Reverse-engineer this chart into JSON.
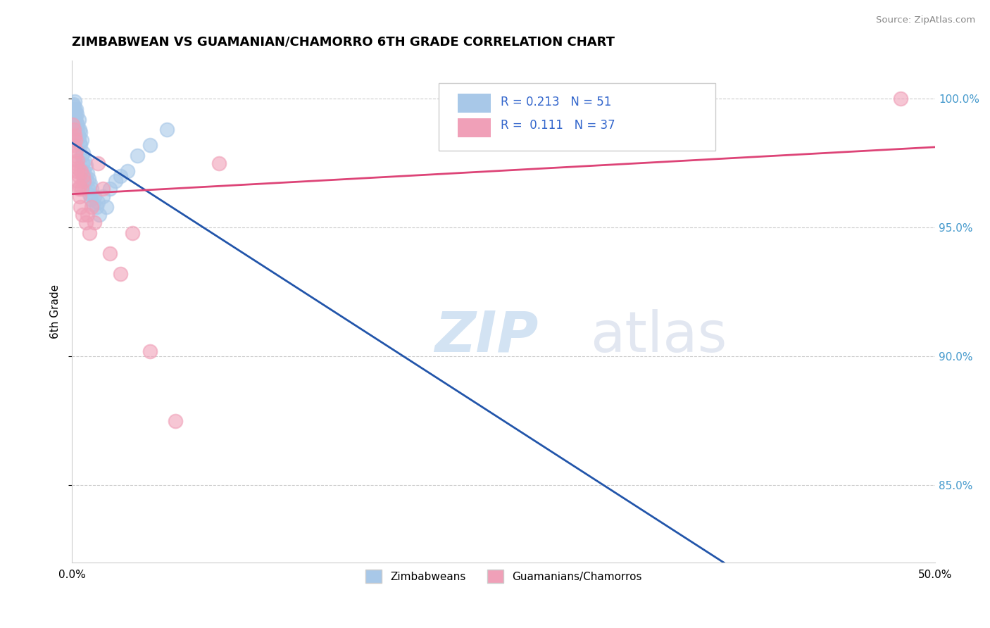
{
  "title": "ZIMBABWEAN VS GUAMANIAN/CHAMORRO 6TH GRADE CORRELATION CHART",
  "source": "Source: ZipAtlas.com",
  "ylabel_label": "6th Grade",
  "xlim": [
    0.0,
    50.0
  ],
  "ylim": [
    82.0,
    101.5
  ],
  "ytick_vals": [
    85.0,
    90.0,
    95.0,
    100.0
  ],
  "xtick_vals": [
    0.0,
    50.0
  ],
  "blue_color": "#A8C8E8",
  "pink_color": "#F0A0B8",
  "blue_line_color": "#2255AA",
  "pink_line_color": "#DD4477",
  "legend_label1": "Zimbabweans",
  "legend_label2": "Guamanians/Chamorros",
  "zimbabwean_x": [
    0.05,
    0.08,
    0.1,
    0.12,
    0.13,
    0.15,
    0.15,
    0.18,
    0.2,
    0.22,
    0.25,
    0.28,
    0.3,
    0.32,
    0.35,
    0.38,
    0.4,
    0.42,
    0.45,
    0.48,
    0.5,
    0.55,
    0.58,
    0.6,
    0.65,
    0.7,
    0.72,
    0.78,
    0.8,
    0.85,
    0.88,
    0.92,
    0.95,
    1.0,
    1.05,
    1.1,
    1.15,
    1.2,
    1.3,
    1.4,
    1.5,
    1.6,
    1.8,
    2.0,
    2.2,
    2.5,
    2.8,
    3.2,
    3.8,
    4.5,
    5.5
  ],
  "zimbabwean_y": [
    99.5,
    99.8,
    99.6,
    99.7,
    99.4,
    99.9,
    99.2,
    99.5,
    99.3,
    99.6,
    99.1,
    99.4,
    98.8,
    99.0,
    98.6,
    99.2,
    98.5,
    98.8,
    98.3,
    98.7,
    98.2,
    97.8,
    98.4,
    97.5,
    97.9,
    97.2,
    97.6,
    97.0,
    97.4,
    96.8,
    97.1,
    96.5,
    96.9,
    96.3,
    96.7,
    96.1,
    96.5,
    95.9,
    96.2,
    95.8,
    96.0,
    95.5,
    96.2,
    95.8,
    96.5,
    96.8,
    97.0,
    97.2,
    97.8,
    98.2,
    98.8
  ],
  "guamanian_x": [
    0.05,
    0.08,
    0.1,
    0.13,
    0.15,
    0.18,
    0.2,
    0.22,
    0.25,
    0.28,
    0.3,
    0.33,
    0.35,
    0.38,
    0.4,
    0.43,
    0.45,
    0.48,
    0.52,
    0.55,
    0.6,
    0.65,
    0.7,
    0.8,
    0.9,
    1.0,
    1.15,
    1.3,
    1.5,
    1.8,
    2.2,
    2.8,
    3.5,
    4.5,
    6.0,
    8.5,
    48.0
  ],
  "guamanian_y": [
    99.0,
    98.5,
    98.8,
    98.2,
    98.6,
    97.8,
    98.4,
    97.5,
    98.0,
    97.2,
    97.6,
    96.8,
    97.3,
    96.5,
    97.0,
    96.2,
    96.6,
    95.8,
    97.2,
    96.5,
    95.5,
    97.0,
    96.8,
    95.2,
    95.5,
    94.8,
    95.8,
    95.2,
    97.5,
    96.5,
    94.0,
    93.2,
    94.8,
    90.2,
    87.5,
    97.5,
    100.0
  ]
}
